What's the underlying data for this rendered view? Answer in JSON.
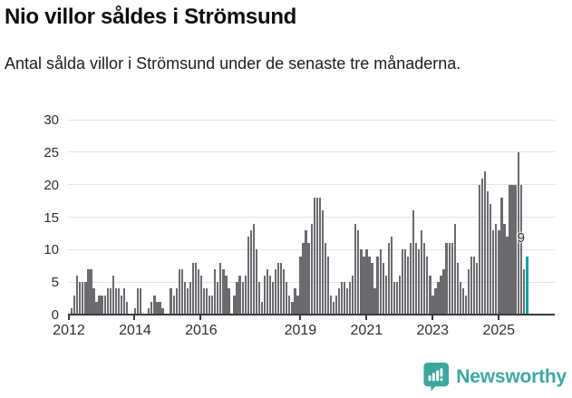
{
  "header": {
    "title": "Nio villor såldes i Strömsund",
    "subtitle": "Antal sålda villor i Strömsund under de senaste tre månaderna."
  },
  "chart_data": {
    "type": "bar",
    "title": "Nio villor såldes i Strömsund",
    "subtitle": "Antal sålda villor i Strömsund under de senaste tre månaderna.",
    "xlabel": "",
    "ylabel": "",
    "ylim": [
      0,
      30
    ],
    "y_ticks": [
      0,
      5,
      10,
      15,
      20,
      25,
      30
    ],
    "grid": true,
    "legend": "none",
    "x_ticks": [
      {
        "label": "2012",
        "month_offset": 0
      },
      {
        "label": "2014",
        "month_offset": 24
      },
      {
        "label": "2016",
        "month_offset": 48
      },
      {
        "label": "2019",
        "month_offset": 84
      },
      {
        "label": "2021",
        "month_offset": 108
      },
      {
        "label": "2023",
        "month_offset": 132
      },
      {
        "label": "2025",
        "month_offset": 156
      }
    ],
    "series": [
      {
        "year": "2012",
        "values": [
          0,
          1,
          3,
          6,
          5,
          5,
          5,
          7,
          7,
          4,
          2,
          3
        ]
      },
      {
        "year": "2013",
        "values": [
          3,
          3,
          4,
          4,
          6,
          4,
          4,
          3,
          4,
          2,
          0,
          0
        ]
      },
      {
        "year": "2014",
        "values": [
          1,
          4,
          4,
          0,
          0,
          1,
          2,
          3,
          2,
          2,
          1,
          0
        ]
      },
      {
        "year": "2015",
        "values": [
          0,
          4,
          3,
          4,
          7,
          7,
          5,
          4,
          5,
          8,
          8,
          7
        ]
      },
      {
        "year": "2016",
        "values": [
          6,
          4,
          4,
          3,
          3,
          7,
          5,
          8,
          7,
          6,
          4,
          0
        ]
      },
      {
        "year": "2017",
        "values": [
          3,
          5,
          6,
          5,
          6,
          12,
          13,
          14,
          10,
          5,
          2,
          6
        ]
      },
      {
        "year": "2018",
        "values": [
          7,
          6,
          5,
          7,
          8,
          8,
          7,
          5,
          3,
          2,
          4,
          3
        ]
      },
      {
        "year": "2019",
        "values": [
          9,
          11,
          13,
          11,
          14,
          18,
          18,
          18,
          16,
          11,
          9,
          3
        ]
      },
      {
        "year": "2020",
        "values": [
          2,
          3,
          4,
          5,
          5,
          4,
          5,
          6,
          14,
          13,
          10,
          9
        ]
      },
      {
        "year": "2021",
        "values": [
          10,
          9,
          8,
          4,
          9,
          10,
          8,
          6,
          11,
          12,
          5,
          5
        ]
      },
      {
        "year": "2022",
        "values": [
          6,
          10,
          10,
          9,
          11,
          16,
          11,
          10,
          13,
          11,
          9,
          6
        ]
      },
      {
        "year": "2023",
        "values": [
          3,
          4,
          5,
          6,
          7,
          11,
          11,
          11,
          14,
          8,
          5,
          4
        ]
      },
      {
        "year": "2024",
        "values": [
          3,
          7,
          9,
          9,
          8,
          20,
          21,
          22,
          19,
          17,
          13,
          14
        ]
      },
      {
        "year": "2025",
        "values": [
          13,
          18,
          14,
          12,
          20,
          20,
          20,
          25,
          20,
          7,
          9
        ]
      }
    ],
    "highlight": {
      "position": "last",
      "value": 9,
      "label": "9"
    },
    "colors": {
      "bar": "#6a6a6f",
      "highlight": "#0aa3a0",
      "grid": "#e3e3e3",
      "axis": "#3b3b3b",
      "tick_text": "#2e2e2e",
      "label_text": "#333333"
    }
  },
  "brand": {
    "name": "Newsworthy",
    "color": "#3da79f",
    "icon": "newsworthy-bar-chart-bubble-icon"
  }
}
